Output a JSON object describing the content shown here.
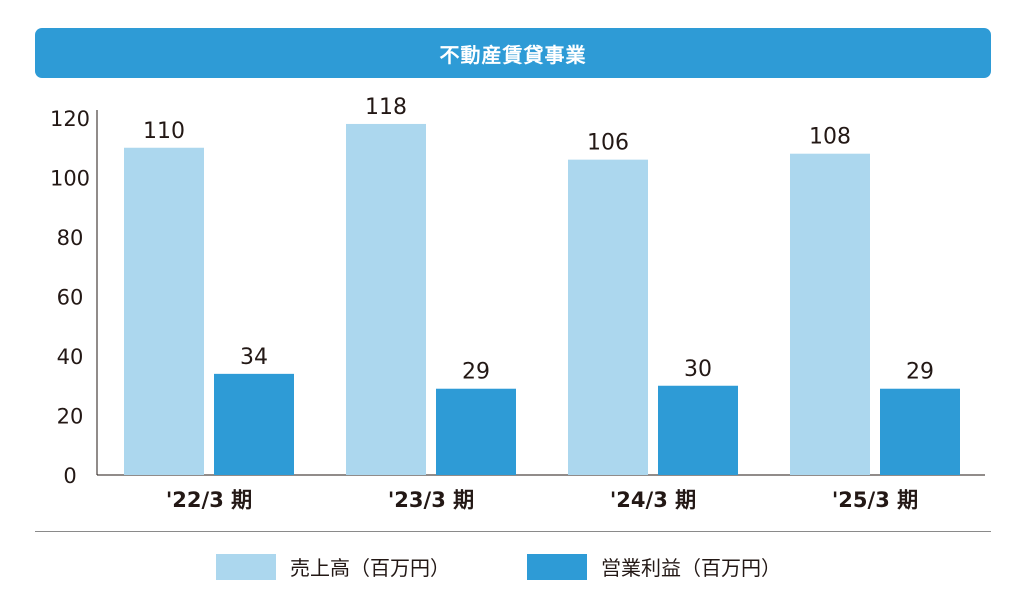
{
  "colors": {
    "title_bg": "#2e9bd6",
    "sales": "#acd7ee",
    "profit": "#2e9bd6"
  },
  "chart_data": {
    "type": "bar",
    "title": "不動産賃貸事業",
    "categories": [
      "'22/3 期",
      "'23/3 期",
      "'24/3 期",
      "'25/3 期"
    ],
    "series": [
      {
        "name": "売上高（百万円）",
        "values": [
          110,
          118,
          106,
          108
        ],
        "color": "#acd7ee"
      },
      {
        "name": "営業利益（百万円）",
        "values": [
          34,
          29,
          30,
          29
        ],
        "color": "#2e9bd6"
      }
    ],
    "ylim": [
      0,
      120
    ],
    "yticks": [
      "0",
      "20",
      "40",
      "60",
      "80",
      "100",
      "120"
    ],
    "grid": false,
    "legend": "bottom",
    "data_labels": true
  }
}
